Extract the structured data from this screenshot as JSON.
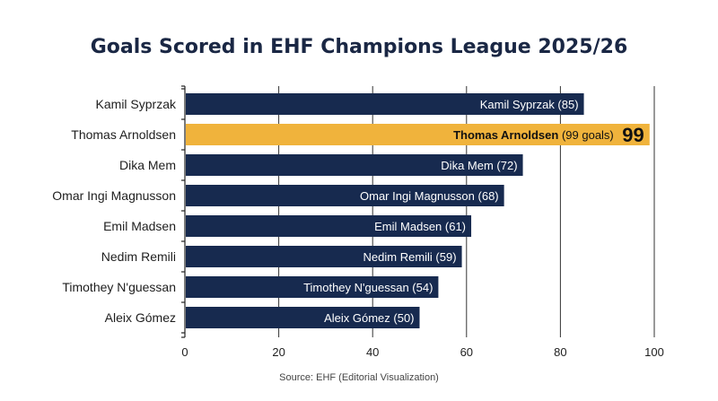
{
  "chart_data": {
    "type": "bar",
    "orientation": "horizontal",
    "title": "Goals Scored in EHF Champions League 2025/26",
    "source": "Source: EHF (Editorial Visualization)",
    "categories": [
      "Kamil Syprzak",
      "Thomas Arnoldsen",
      "Dika Mem",
      "Omar Ingi Magnusson",
      "Emil Madsen",
      "Nedim Remili",
      "Timothey N'guessan",
      "Aleix Gómez"
    ],
    "values": [
      85,
      99,
      72,
      68,
      61,
      59,
      54,
      50
    ],
    "bar_labels": [
      "Kamil Syprzak (85)",
      "",
      "Dika Mem (72)",
      "Omar Ingi Magnusson (68)",
      "Emil Madsen (61)",
      "Nedim Remili (59)",
      "Timothey N'guessan (54)",
      "Aleix Gómez (50)"
    ],
    "highlight": {
      "index": 1,
      "name": "Thomas Arnoldsen",
      "detail": "(99 goals)",
      "big_value": "99"
    },
    "xlim": [
      0,
      100
    ],
    "xticks": [
      "0",
      "20",
      "40",
      "60",
      "80",
      "100"
    ],
    "grid": true,
    "colors": {
      "bar": "#172a4f",
      "highlight": "#f0b33c",
      "title": "#1a2744",
      "grid": "#333333"
    }
  }
}
